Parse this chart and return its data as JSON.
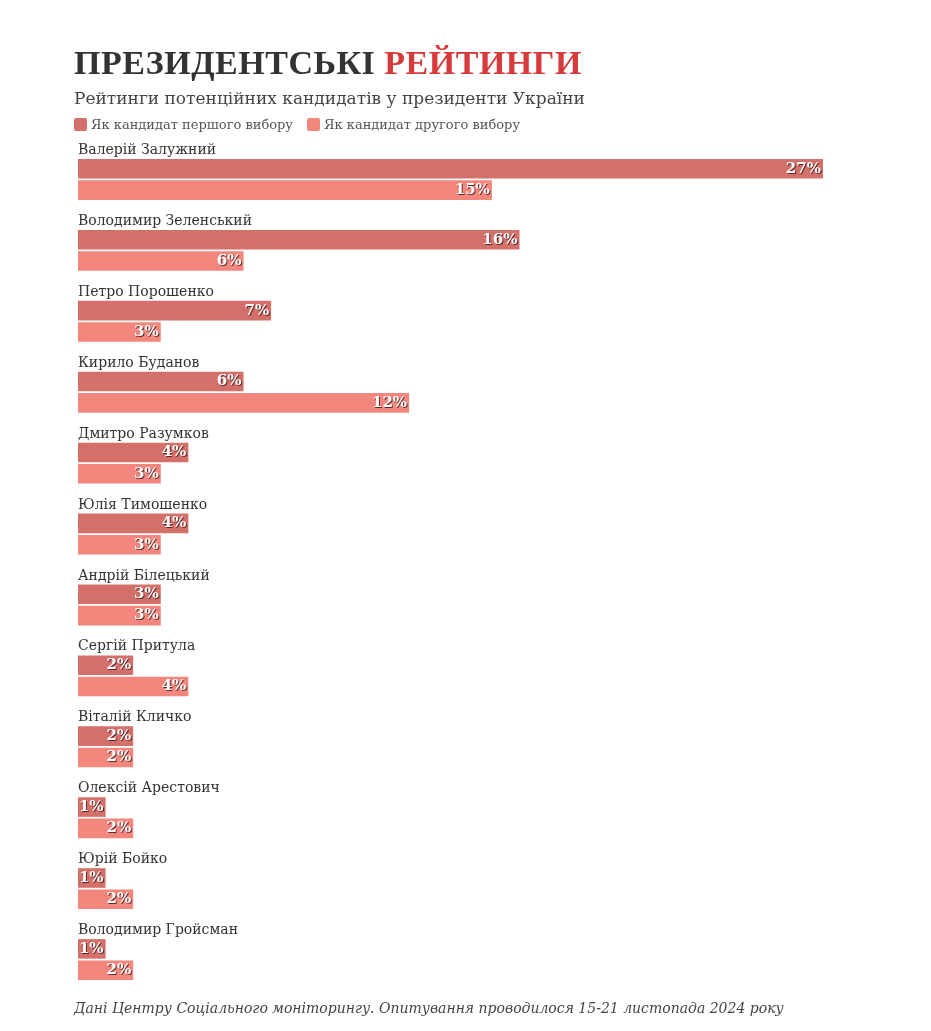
{
  "chart_data": {
    "type": "bar",
    "orientation": "horizontal",
    "title": "ПРЕЗИДЕНТСЬКІ РЕЙТИНГИ",
    "subtitle": "Рейтинги потенційних кандидатів у президенти України",
    "categories": [
      "Валерій Залужний",
      "Володимир Зеленський",
      "Петро Порошенко",
      "Кирило Буданов",
      "Дмитро Разумков",
      "Юлія Тимошенко",
      "Андрій Білецький",
      "Сергій Притула",
      "Віталій Кличко",
      "Олексій Арестович",
      "Юрій Бойко",
      "Володимир Гройсман"
    ],
    "series": [
      {
        "name": "Як кандидат першого вибору",
        "color": "#d4706a",
        "values": [
          27,
          16,
          7,
          6,
          4,
          4,
          3,
          2,
          2,
          1,
          1,
          1
        ],
        "value_labels": [
          "27%",
          "16%",
          "7%",
          "6%",
          "4%",
          "4%",
          "3%",
          "2%",
          "2%",
          "1%",
          "1%",
          "1%"
        ]
      },
      {
        "name": "Як кандидат другого вибору",
        "color": "#f4877d",
        "values": [
          15,
          6,
          3,
          12,
          3,
          3,
          3,
          4,
          2,
          2,
          2,
          2
        ],
        "value_labels": [
          "15%",
          "6%",
          "3%",
          "12%",
          "3%",
          "3%",
          "3%",
          "4%",
          "2%",
          "2%",
          "2%",
          "2%"
        ]
      }
    ],
    "legend": "top left",
    "annotations": [
      "Дані Центру Соціального моніторингу. Опитування проводилося 15-21 листопада 2024 року"
    ]
  }
}
